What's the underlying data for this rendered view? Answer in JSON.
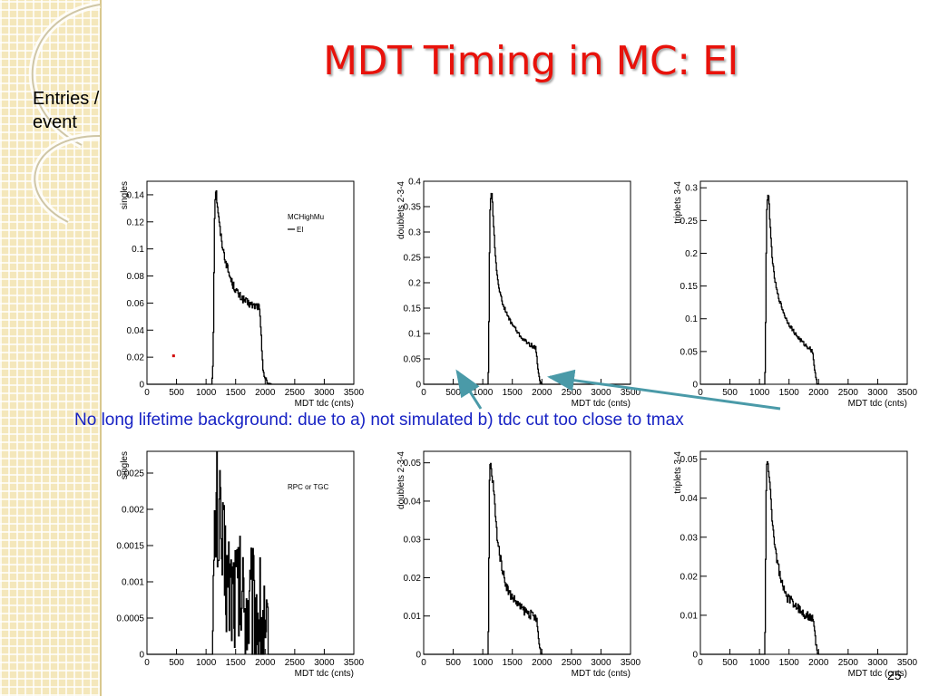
{
  "slide": {
    "title": "MDT Timing in MC: EI",
    "ylabel_text": "Entries / event",
    "note": "No long lifetime background: due to a) not simulated b) tdc cut too close to tmax",
    "page_number": "25"
  },
  "colors": {
    "title": "#e8120b",
    "note": "#1722c4",
    "arrow": "#4a9aa8",
    "sidebar": "#f4e7bb"
  },
  "chart_data": [
    {
      "type": "line",
      "id": "top-singles",
      "xlabel": "MDT tdc (cnts)",
      "ylabel": "singles",
      "xlim": [
        0,
        3500
      ],
      "ylim": [
        0,
        0.15
      ],
      "xticks": [
        0,
        500,
        1000,
        1500,
        2000,
        2500,
        3000,
        3500
      ],
      "yticks": [
        0,
        0.02,
        0.04,
        0.06,
        0.08,
        0.1,
        0.12,
        0.14
      ],
      "ytick_labels": [
        "0",
        "0.02",
        "0.04",
        "0.06",
        "0.08",
        "0.1",
        "0.12",
        "0.14"
      ],
      "legend": {
        "title": "MCHighMu",
        "entries": [
          "EI"
        ]
      },
      "series": [
        {
          "x": [
            0,
            1100,
            1120,
            1130,
            1140,
            1150,
            1160,
            1170,
            1180,
            1200,
            1220,
            1250,
            1300,
            1350,
            1400,
            1450,
            1500,
            1550,
            1600,
            1650,
            1700,
            1750,
            1800,
            1850,
            1900,
            1920,
            1940,
            1960,
            1980,
            2000,
            2020,
            2050,
            2100,
            3500
          ],
          "y": [
            0,
            0,
            0.02,
            0.06,
            0.11,
            0.135,
            0.142,
            0.145,
            0.138,
            0.13,
            0.12,
            0.11,
            0.097,
            0.088,
            0.08,
            0.074,
            0.07,
            0.066,
            0.064,
            0.062,
            0.06,
            0.059,
            0.058,
            0.058,
            0.057,
            0.045,
            0.03,
            0.015,
            0.008,
            0.004,
            0.002,
            0.0005,
            0,
            0
          ],
          "noise": 0.003
        }
      ]
    },
    {
      "type": "line",
      "id": "top-doublets",
      "xlabel": "MDT tdc (cnts)",
      "ylabel": "doublets 2-3-4",
      "xlim": [
        0,
        3500
      ],
      "ylim": [
        0,
        0.4
      ],
      "xticks": [
        0,
        500,
        1000,
        1500,
        2000,
        2500,
        3000,
        3500
      ],
      "yticks": [
        0,
        0.05,
        0.1,
        0.15,
        0.2,
        0.25,
        0.3,
        0.35,
        0.4
      ],
      "ytick_labels": [
        "0",
        "0.05",
        "0.1",
        "0.15",
        "0.2",
        "0.25",
        "0.3",
        "0.35",
        "0.4"
      ],
      "series": [
        {
          "x": [
            0,
            1090,
            1100,
            1110,
            1120,
            1130,
            1140,
            1150,
            1160,
            1170,
            1180,
            1200,
            1220,
            1250,
            1300,
            1350,
            1400,
            1450,
            1500,
            1550,
            1600,
            1650,
            1700,
            1750,
            1800,
            1850,
            1900,
            1920,
            1940,
            1960,
            1980,
            2000,
            2050,
            3500
          ],
          "y": [
            0,
            0,
            0.05,
            0.2,
            0.32,
            0.36,
            0.375,
            0.38,
            0.37,
            0.35,
            0.32,
            0.28,
            0.245,
            0.21,
            0.175,
            0.155,
            0.14,
            0.128,
            0.118,
            0.11,
            0.1,
            0.093,
            0.087,
            0.082,
            0.078,
            0.075,
            0.07,
            0.05,
            0.025,
            0.008,
            0.002,
            0,
            0,
            0
          ],
          "noise": 0.004
        }
      ]
    },
    {
      "type": "line",
      "id": "top-triplets",
      "xlabel": "MDT tdc (cnts)",
      "ylabel": "triplets 3-4",
      "xlim": [
        0,
        3500
      ],
      "ylim": [
        0,
        0.31
      ],
      "xticks": [
        0,
        500,
        1000,
        1500,
        2000,
        2500,
        3000,
        3500
      ],
      "yticks": [
        0,
        0.05,
        0.1,
        0.15,
        0.2,
        0.25,
        0.3
      ],
      "ytick_labels": [
        "0",
        "0.05",
        "0.1",
        "0.15",
        "0.2",
        "0.25",
        "0.3"
      ],
      "series": [
        {
          "x": [
            0,
            1090,
            1100,
            1110,
            1120,
            1130,
            1140,
            1150,
            1160,
            1170,
            1180,
            1200,
            1220,
            1250,
            1300,
            1350,
            1400,
            1450,
            1500,
            1550,
            1600,
            1650,
            1700,
            1750,
            1800,
            1850,
            1900,
            1920,
            1940,
            1960,
            1980,
            2000,
            2050,
            3500
          ],
          "y": [
            0,
            0,
            0.04,
            0.15,
            0.25,
            0.28,
            0.288,
            0.29,
            0.28,
            0.265,
            0.245,
            0.215,
            0.19,
            0.165,
            0.14,
            0.125,
            0.112,
            0.1,
            0.092,
            0.085,
            0.078,
            0.072,
            0.067,
            0.062,
            0.058,
            0.055,
            0.05,
            0.035,
            0.018,
            0.006,
            0.001,
            0,
            0,
            0
          ],
          "noise": 0.003
        }
      ]
    },
    {
      "type": "line",
      "id": "bottom-singles",
      "xlabel": "MDT tdc (cnts)",
      "ylabel": "singles",
      "xlim": [
        0,
        3500
      ],
      "ylim": [
        0,
        0.0028
      ],
      "xticks": [
        0,
        500,
        1000,
        1500,
        2000,
        2500,
        3000,
        3500
      ],
      "yticks": [
        0,
        0.0005,
        0.001,
        0.0015,
        0.002,
        0.0025
      ],
      "ytick_labels": [
        "0",
        "0.0005",
        "0.001",
        "0.0015",
        "0.002",
        "0.0025"
      ],
      "legend": {
        "title": "RPC or TGC",
        "entries": []
      },
      "series": [
        {
          "x": [
            0,
            1100,
            1120,
            1140,
            1160,
            1180,
            1200,
            1250,
            1300,
            1350,
            1400,
            1450,
            1500,
            1550,
            1600,
            1650,
            1700,
            1750,
            1800,
            1850,
            1900,
            1950,
            1980,
            2000,
            2020,
            2050,
            3500
          ],
          "y": [
            0,
            0,
            0.0005,
            0.0012,
            0.0018,
            0.0021,
            0.0019,
            0.0016,
            0.0013,
            0.0011,
            0.001,
            0.00095,
            0.0009,
            0.00085,
            0.0008,
            0.00078,
            0.00075,
            0.0007,
            0.00068,
            0.00065,
            0.0006,
            0.0005,
            0.0003,
            0.00015,
            5e-05,
            0,
            0
          ],
          "noise": 0.0009
        }
      ]
    },
    {
      "type": "line",
      "id": "bottom-doublets",
      "xlabel": "MDT tdc (cnts)",
      "ylabel": "doublets 2-3-4",
      "xlim": [
        0,
        3500
      ],
      "ylim": [
        0,
        0.053
      ],
      "xticks": [
        0,
        500,
        1000,
        1500,
        2000,
        2500,
        3000,
        3500
      ],
      "yticks": [
        0,
        0.01,
        0.02,
        0.03,
        0.04,
        0.05
      ],
      "ytick_labels": [
        "0",
        "0.01",
        "0.02",
        "0.03",
        "0.04",
        "0.05"
      ],
      "series": [
        {
          "x": [
            0,
            1090,
            1100,
            1110,
            1120,
            1130,
            1140,
            1150,
            1160,
            1180,
            1200,
            1220,
            1250,
            1300,
            1350,
            1400,
            1450,
            1500,
            1550,
            1600,
            1650,
            1700,
            1750,
            1800,
            1850,
            1900,
            1920,
            1940,
            1960,
            1980,
            2000,
            2050,
            3500
          ],
          "y": [
            0,
            0,
            0.01,
            0.04,
            0.049,
            0.05,
            0.049,
            0.047,
            0.046,
            0.044,
            0.04,
            0.035,
            0.03,
            0.025,
            0.021,
            0.018,
            0.016,
            0.015,
            0.014,
            0.013,
            0.012,
            0.0115,
            0.011,
            0.0105,
            0.01,
            0.0095,
            0.008,
            0.005,
            0.002,
            0.0005,
            0,
            0,
            0
          ],
          "noise": 0.0012
        }
      ]
    },
    {
      "type": "line",
      "id": "bottom-triplets",
      "xlabel": "MDT tdc (cnts)",
      "ylabel": "triplets 3-4",
      "xlim": [
        0,
        3500
      ],
      "ylim": [
        0,
        0.052
      ],
      "xticks": [
        0,
        500,
        1000,
        1500,
        2000,
        2500,
        3000,
        3500
      ],
      "yticks": [
        0,
        0.01,
        0.02,
        0.03,
        0.04,
        0.05
      ],
      "ytick_labels": [
        "0",
        "0.01",
        "0.02",
        "0.03",
        "0.04",
        "0.05"
      ],
      "series": [
        {
          "x": [
            0,
            1090,
            1100,
            1110,
            1120,
            1130,
            1140,
            1150,
            1160,
            1180,
            1200,
            1220,
            1250,
            1300,
            1350,
            1400,
            1450,
            1500,
            1550,
            1600,
            1650,
            1700,
            1750,
            1800,
            1850,
            1900,
            1920,
            1940,
            1960,
            1980,
            2000,
            2050,
            3500
          ],
          "y": [
            0,
            0,
            0.01,
            0.038,
            0.048,
            0.05,
            0.049,
            0.047,
            0.045,
            0.043,
            0.039,
            0.034,
            0.029,
            0.024,
            0.02,
            0.017,
            0.015,
            0.014,
            0.0135,
            0.013,
            0.012,
            0.011,
            0.0105,
            0.01,
            0.0095,
            0.009,
            0.0075,
            0.005,
            0.002,
            0.0005,
            0,
            0,
            0
          ],
          "noise": 0.0012
        }
      ]
    }
  ]
}
